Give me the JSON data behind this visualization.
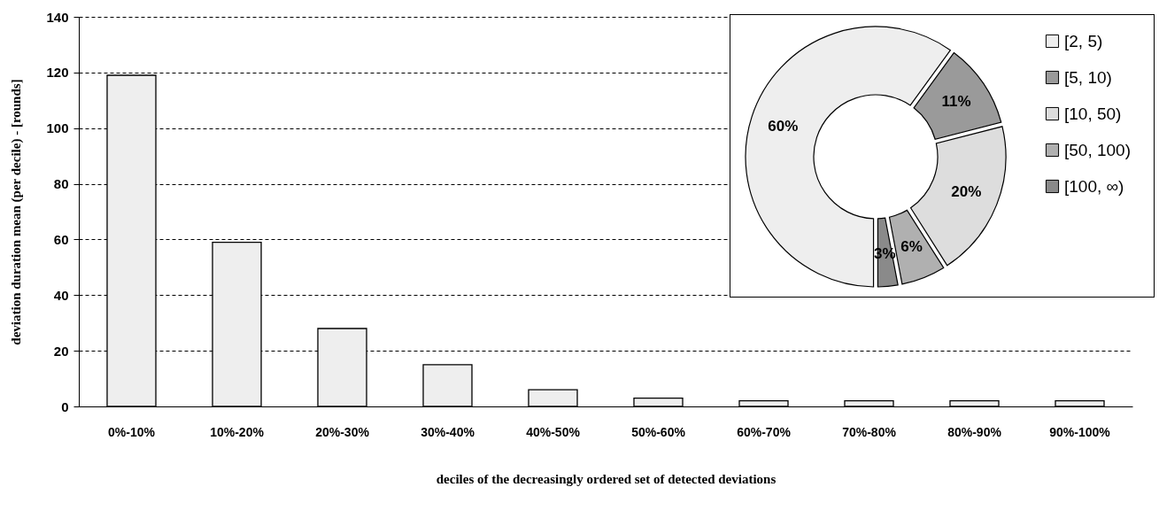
{
  "chart_data": [
    {
      "type": "bar",
      "xlabel": "deciles of the decreasingly ordered set of detected deviations",
      "ylabel": "deviation duration mean (per decile) - [rounds]",
      "categories": [
        "0%-10%",
        "10%-20%",
        "20%-30%",
        "30%-40%",
        "40%-50%",
        "50%-60%",
        "60%-70%",
        "70%-80%",
        "80%-90%",
        "90%-100%"
      ],
      "values": [
        119,
        59,
        28,
        15,
        6,
        3,
        2,
        2,
        2,
        2
      ],
      "color": "#eeeeee",
      "ylim": [
        0,
        140
      ],
      "yticks": [
        0,
        20,
        40,
        60,
        80,
        100,
        120,
        140
      ],
      "grid": "y"
    },
    {
      "type": "donut",
      "categories": [
        "[2, 5)",
        "[5, 10)",
        "[10, 50)",
        "[50, 100)",
        "[100, ∞)"
      ],
      "values": [
        60,
        11,
        20,
        6,
        3
      ],
      "colors": [
        "#eeeeee",
        "#9a9a9a",
        "#dddddd",
        "#b0b0b0",
        "#8a8a8a"
      ],
      "value_labels": [
        "60%",
        "11%",
        "20%",
        "6%",
        "3%"
      ],
      "legend": "right"
    }
  ]
}
